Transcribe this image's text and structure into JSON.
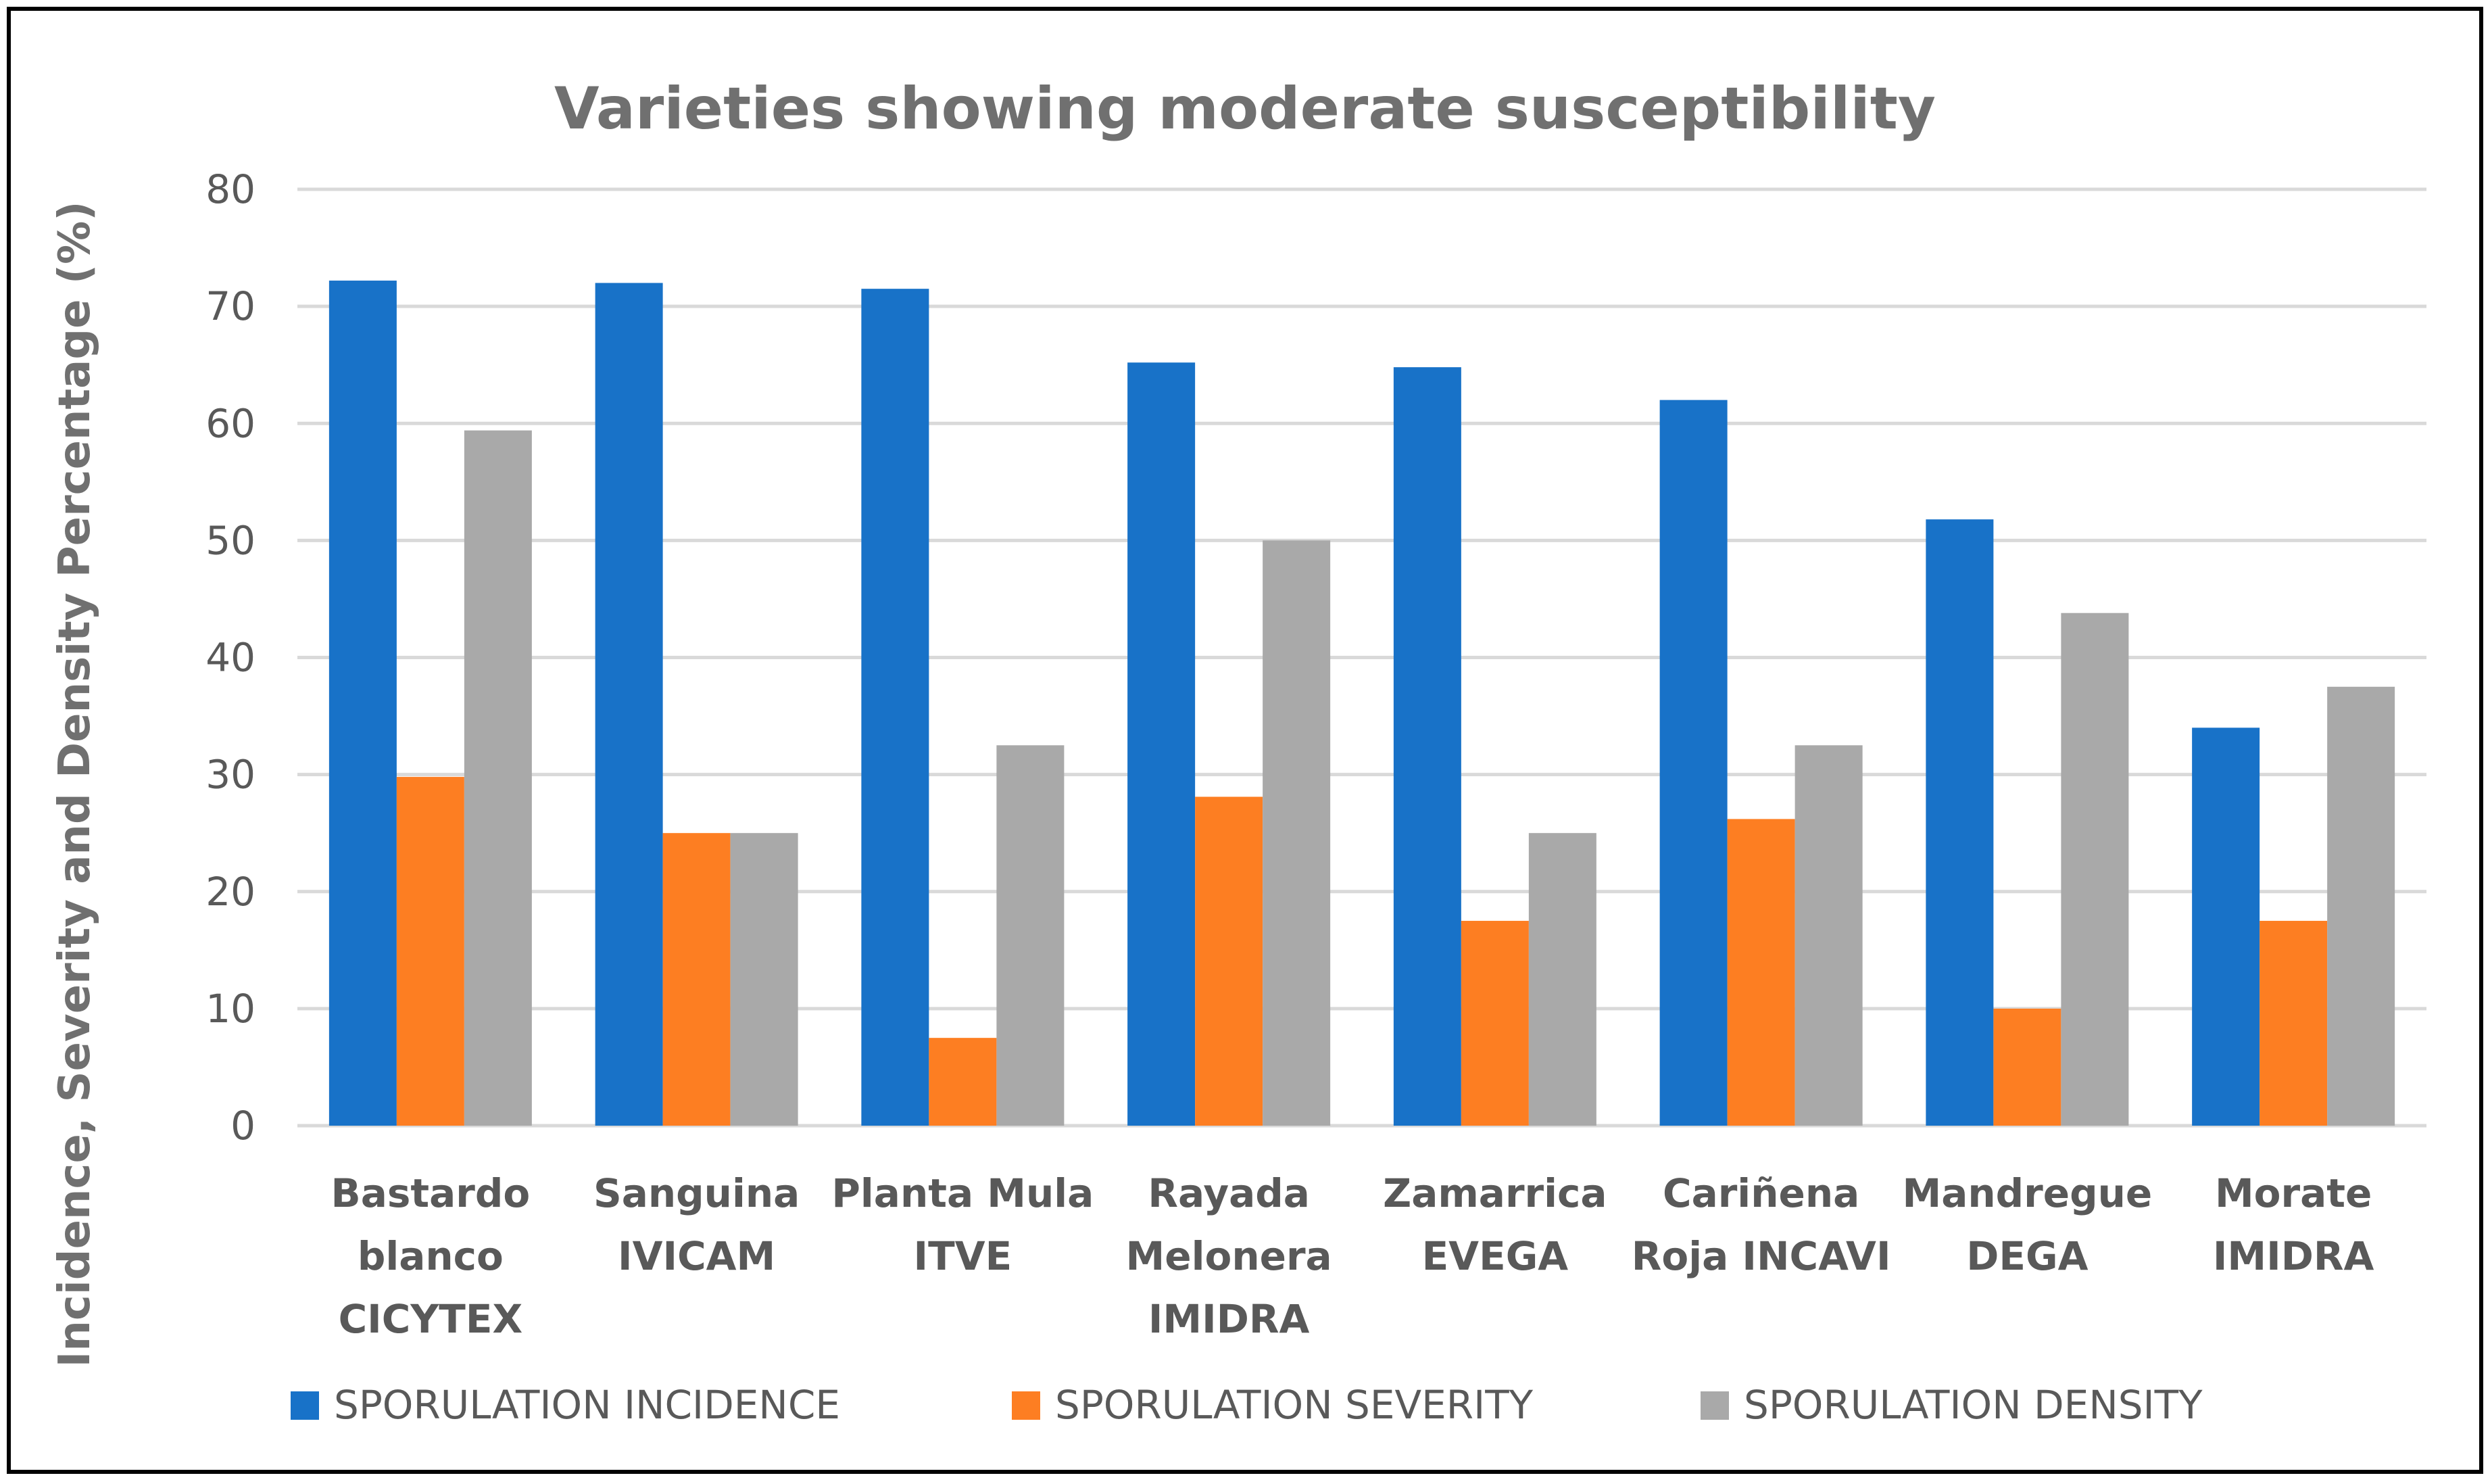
{
  "chart_data": {
    "type": "bar",
    "title": "Varieties showing moderate susceptibility",
    "xlabel": "",
    "ylabel": "Incidence, Severity and Density Percentage  (%)",
    "ylim": [
      0,
      80
    ],
    "yticks": [
      0,
      10,
      20,
      30,
      40,
      50,
      60,
      70,
      80
    ],
    "grid": true,
    "legend_position": "bottom",
    "categories": [
      [
        "Bastardo",
        "blanco",
        "CICYTEX"
      ],
      [
        "Sanguina",
        "IVICAM"
      ],
      [
        "Planta Mula",
        "ITVE"
      ],
      [
        "Rayada",
        "Melonera",
        "IMIDRA"
      ],
      [
        "Zamarrica",
        "EVEGA"
      ],
      [
        "Cariñena",
        "Roja INCAVI"
      ],
      [
        "Mandregue",
        "DEGA"
      ],
      [
        "Morate",
        "IMIDRA"
      ]
    ],
    "series": [
      {
        "name": "SPORULATION INCIDENCE",
        "color": "#1872c8",
        "values": [
          72.2,
          72.0,
          71.5,
          65.2,
          64.8,
          62.0,
          51.8,
          34.0
        ]
      },
      {
        "name": "SPORULATION SEVERITY",
        "color": "#fd7e22",
        "values": [
          29.8,
          25.0,
          7.5,
          28.1,
          17.5,
          26.2,
          10.0,
          17.5
        ]
      },
      {
        "name": "SPORULATION DENSITY",
        "color": "#a9a9a9",
        "values": [
          59.4,
          25.0,
          32.5,
          50.0,
          25.0,
          32.5,
          43.8,
          37.5
        ]
      }
    ]
  }
}
